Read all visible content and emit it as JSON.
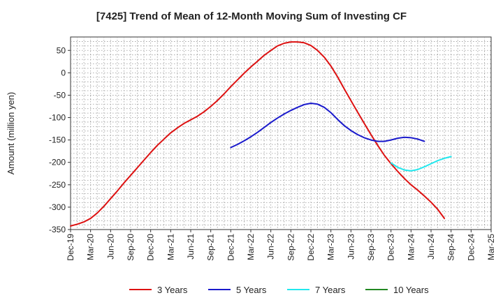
{
  "chart_data": {
    "type": "line",
    "title": "[7425]  Trend of Mean of 12-Month Moving Sum of Investing CF",
    "xlabel": "",
    "ylabel": "Amount (million yen)",
    "ylim": [
      -350,
      80
    ],
    "yticks": [
      50,
      0,
      -50,
      -100,
      -150,
      -200,
      -250,
      -300,
      -350
    ],
    "xticks": [
      "Dec-19",
      "Mar-20",
      "Jun-20",
      "Sep-20",
      "Dec-20",
      "Mar-21",
      "Jun-21",
      "Sep-21",
      "Dec-21",
      "Mar-22",
      "Jun-22",
      "Sep-22",
      "Dec-22",
      "Mar-23",
      "Jun-23",
      "Sep-23",
      "Dec-23",
      "Mar-24",
      "Jun-24",
      "Sep-24",
      "Dec-24",
      "Mar-25"
    ],
    "grid": true,
    "legend_position": "bottom",
    "series": [
      {
        "name": "3 Years",
        "color": "#dd1111",
        "start_index": 0,
        "values": [
          -342,
          -338,
          -333,
          -325,
          -313,
          -298,
          -281,
          -264,
          -246,
          -229,
          -212,
          -195,
          -178,
          -162,
          -148,
          -134,
          -123,
          -113,
          -105,
          -97,
          -87,
          -75,
          -62,
          -47,
          -31,
          -16,
          -1,
          13,
          26,
          39,
          50,
          60,
          66,
          69,
          69,
          67,
          61,
          50,
          35,
          15,
          -9,
          -36,
          -62,
          -88,
          -113,
          -138,
          -162,
          -184,
          -203,
          -220,
          -236,
          -250,
          -262,
          -275,
          -289,
          -305,
          -325
        ]
      },
      {
        "name": "5 Years",
        "color": "#1a1acc",
        "start_index": 24,
        "values": [
          -167,
          -160,
          -152,
          -143,
          -133,
          -122,
          -111,
          -101,
          -92,
          -84,
          -77,
          -71,
          -68,
          -70,
          -77,
          -89,
          -104,
          -118,
          -129,
          -138,
          -145,
          -150,
          -153,
          -153,
          -150,
          -146,
          -144,
          -145,
          -148,
          -153
        ]
      },
      {
        "name": "7 Years",
        "color": "#22e8ee",
        "start_index": 48,
        "values": [
          -201,
          -211,
          -217,
          -219,
          -216,
          -210,
          -203,
          -196,
          -191,
          -187
        ]
      },
      {
        "name": "10 Years",
        "color": "#228822",
        "start_index": 0,
        "values": []
      }
    ]
  }
}
